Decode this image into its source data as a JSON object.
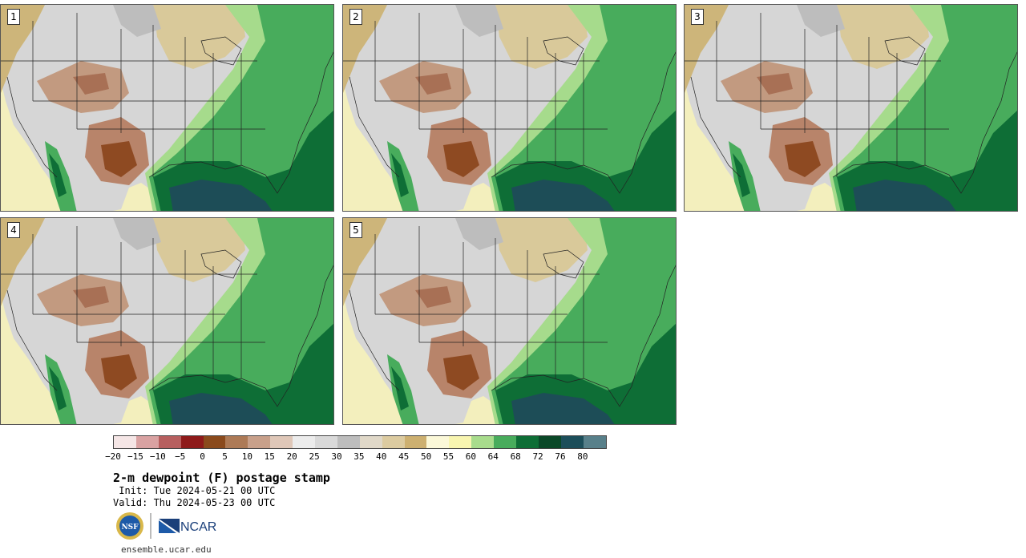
{
  "panels": [
    {
      "label": "1"
    },
    {
      "label": "2"
    },
    {
      "label": "3"
    },
    {
      "label": "4"
    },
    {
      "label": "5"
    }
  ],
  "colorbar": {
    "colors": [
      "#f5e6e6",
      "#d9a2a2",
      "#b75f5f",
      "#8e1a1a",
      "#8a4a1c",
      "#ad7a56",
      "#c8a08a",
      "#dfc7b8",
      "#ececec",
      "#d9d9d9",
      "#bdbdbd",
      "#e0d8c8",
      "#dccba0",
      "#cdb070",
      "#fbf8d8",
      "#f8f5b0",
      "#a8dc8c",
      "#48ac5c",
      "#0e6e36",
      "#0a4828",
      "#1c4e5a",
      "#58808a"
    ],
    "tick_labels": [
      "−20",
      "−15",
      "−10",
      "−5",
      "0",
      "5",
      "10",
      "15",
      "20",
      "25",
      "30",
      "35",
      "40",
      "45",
      "50",
      "55",
      "60",
      "64",
      "68",
      "72",
      "76",
      "80"
    ]
  },
  "title": "2-m dewpoint (F) postage stamp",
  "init_line": " Init: Tue 2024-05-21 00 UTC",
  "valid_line": "Valid: Thu 2024-05-23 00 UTC",
  "logo_text": {
    "nsf": "NSF",
    "ncar": "NCAR"
  },
  "website": "ensemble.ucar.edu"
}
